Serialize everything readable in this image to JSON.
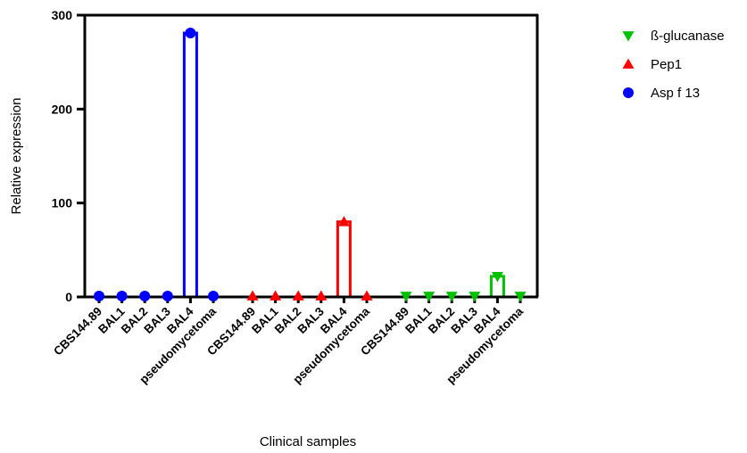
{
  "chart_data": {
    "type": "bar",
    "title": "",
    "xlabel": "Clinical samples",
    "ylabel": "Relative expression",
    "ylim": [
      0,
      300
    ],
    "yticks": [
      "0",
      "100",
      "200",
      "300"
    ],
    "categories": [
      "CBS144.89",
      "BAL1",
      "BAL2",
      "BAL3",
      "BAL4",
      "pseudomycetoma"
    ],
    "series": [
      {
        "name": "Asp f 13",
        "marker": "circle",
        "color": "#0000ff",
        "values": [
          1,
          1,
          1,
          1,
          281,
          1
        ]
      },
      {
        "name": "Pep1",
        "marker": "triangle-up",
        "color": "#ff0000",
        "values": [
          1,
          1,
          1,
          1,
          80,
          1
        ]
      },
      {
        "name": "ß-glucanase",
        "marker": "triangle-down",
        "color": "#00c000",
        "values": [
          1,
          1,
          1,
          1,
          22,
          1
        ]
      }
    ],
    "legend": {
      "position": "top-right",
      "order": [
        "ß-glucanase",
        "Pep1",
        "Asp f 13"
      ]
    },
    "grid": false
  }
}
